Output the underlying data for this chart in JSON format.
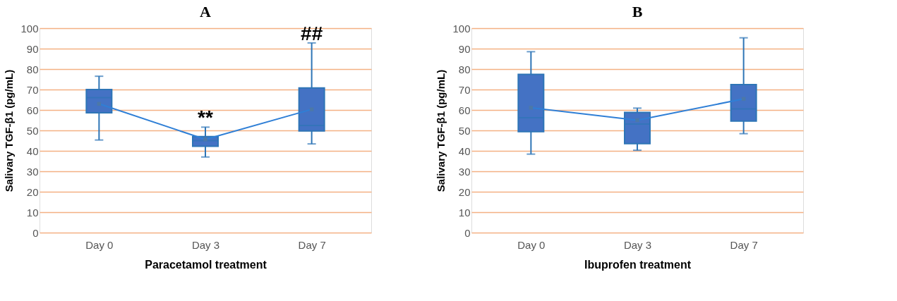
{
  "chart_data": [
    {
      "type": "box",
      "title": "A",
      "xlabel": "Paracetamol treatment",
      "ylabel": "Salivary TGF-β1 (pg/mL)",
      "categories": [
        "Day 0",
        "Day 3",
        "Day 7"
      ],
      "ylim": [
        0,
        100
      ],
      "yticks": [
        0,
        10,
        20,
        30,
        40,
        50,
        60,
        70,
        80,
        90,
        100
      ],
      "grid": "y",
      "series": [
        {
          "type": "box",
          "color": "#4472c4",
          "boxes": [
            {
              "low": 45.3,
              "q1": 58.6,
              "median": 66,
              "q3": 70,
              "high": 76.5
            },
            {
              "low": 37,
              "q1": 42.2,
              "median": 45,
              "q3": 47,
              "high": 51.6
            },
            {
              "low": 43.4,
              "q1": 49.7,
              "median": 52.4,
              "q3": 70.8,
              "high": 92.8
            }
          ]
        },
        {
          "type": "line",
          "color": "#2f7fd6",
          "marker": "square",
          "values": [
            63,
            45.6,
            60.3
          ]
        }
      ],
      "annotations": [
        {
          "text": "**",
          "x": "Day 3",
          "y": 51.6
        },
        {
          "text": "##",
          "x": "Day 7",
          "y": 92.8
        }
      ]
    },
    {
      "type": "box",
      "title": "B",
      "xlabel": "Ibuprofen treatment",
      "ylabel": "Salivary TGF-β1 (pg/mL)",
      "categories": [
        "Day 0",
        "Day 3",
        "Day 7"
      ],
      "ylim": [
        0,
        100
      ],
      "yticks": [
        0,
        10,
        20,
        30,
        40,
        50,
        60,
        70,
        80,
        90,
        100
      ],
      "grid": "y",
      "series": [
        {
          "type": "box",
          "color": "#4472c4",
          "boxes": [
            {
              "low": 38.4,
              "q1": 49.4,
              "median": 56.2,
              "q3": 77.4,
              "high": 88.5
            },
            {
              "low": 40.3,
              "q1": 43.5,
              "median": 53.1,
              "q3": 58.8,
              "high": 60.9
            },
            {
              "low": 48.4,
              "q1": 54.6,
              "median": 60.5,
              "q3": 72.4,
              "high": 95.3
            }
          ]
        },
        {
          "type": "line",
          "color": "#2f7fd6",
          "marker": "square",
          "values": [
            61.1,
            55,
            65.4
          ]
        }
      ]
    }
  ]
}
